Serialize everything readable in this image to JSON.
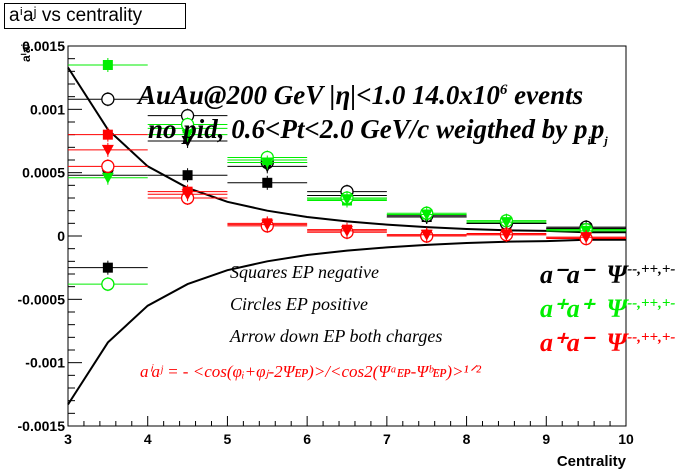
{
  "title": "aⁱaʲ vs centrality",
  "chart_data": {
    "type": "scatter",
    "xlabel": "Centrality",
    "ylabel": "aⁱaʲ",
    "xlim": [
      3,
      10
    ],
    "ylim": [
      -0.0015,
      0.0015
    ],
    "x_ticks": [
      "3",
      "4",
      "5",
      "6",
      "7",
      "8",
      "9",
      "10"
    ],
    "y_ticks": [
      "-0.0015",
      "-0.001",
      "-0.0005",
      "0",
      "0.0005",
      "0.001",
      "0.0015"
    ],
    "series": [
      {
        "color": "#000000",
        "marker": "square",
        "x": [
          3.5,
          4.5,
          5.5,
          6.5,
          7.5,
          8.5,
          9.5
        ],
        "y": [
          -0.00025,
          0.00048,
          0.00042,
          0.00032,
          0.00015,
          0.0001,
          6e-05
        ]
      },
      {
        "color": "#000000",
        "marker": "open-circle",
        "x": [
          3.5,
          4.5,
          5.5,
          6.5,
          7.5,
          8.5,
          9.5
        ],
        "y": [
          0.00108,
          0.00095,
          0.00058,
          0.00035,
          0.00016,
          0.0001,
          7e-05
        ]
      },
      {
        "color": "#000000",
        "marker": "triangle-down",
        "x": [
          3.5,
          4.5,
          5.5,
          6.5,
          7.5,
          8.5,
          9.5
        ],
        "y": [
          0.00048,
          0.00075,
          0.00055,
          0.0003,
          0.00015,
          0.0001,
          6e-05
        ]
      },
      {
        "color": "#00ee00",
        "marker": "square",
        "x": [
          3.5,
          4.5,
          5.5,
          6.5,
          7.5,
          8.5,
          9.5
        ],
        "y": [
          0.00135,
          0.00085,
          0.0006,
          0.00028,
          0.00017,
          0.00012,
          5e-05
        ]
      },
      {
        "color": "#00ee00",
        "marker": "open-circle",
        "x": [
          3.5,
          4.5,
          5.5,
          6.5,
          7.5,
          8.5,
          9.5
        ],
        "y": [
          -0.00038,
          0.00088,
          0.00062,
          0.0003,
          0.00018,
          0.00012,
          5e-05
        ]
      },
      {
        "color": "#00ee00",
        "marker": "triangle-down",
        "x": [
          3.5,
          4.5,
          5.5,
          6.5,
          7.5,
          8.5,
          9.5
        ],
        "y": [
          0.00046,
          0.0008,
          0.00058,
          0.00029,
          0.00017,
          0.00011,
          4e-05
        ]
      },
      {
        "color": "#ff0000",
        "marker": "square",
        "x": [
          3.5,
          4.5,
          5.5,
          6.5,
          7.5,
          8.5,
          9.5
        ],
        "y": [
          0.0008,
          0.00035,
          0.0001,
          5e-05,
          1e-05,
          2e-05,
          -1e-05
        ]
      },
      {
        "color": "#ff0000",
        "marker": "open-circle",
        "x": [
          3.5,
          4.5,
          5.5,
          6.5,
          7.5,
          8.5,
          9.5
        ],
        "y": [
          0.00055,
          0.0003,
          8e-05,
          3e-05,
          0.0,
          1e-05,
          -2e-05
        ]
      },
      {
        "color": "#ff0000",
        "marker": "triangle-down",
        "x": [
          3.5,
          4.5,
          5.5,
          6.5,
          7.5,
          8.5,
          9.5
        ],
        "y": [
          0.00068,
          0.00033,
          9e-05,
          4e-05,
          1e-05,
          1e-05,
          -1e-05
        ]
      }
    ],
    "curves": [
      {
        "color": "#000000",
        "x": [
          3.0,
          3.5,
          4.0,
          4.5,
          5.0,
          5.5,
          6.0,
          6.5,
          7.0,
          7.5,
          8.0,
          8.5,
          9.0,
          9.5,
          10.0
        ],
        "y": [
          0.00133,
          0.00084,
          0.00055,
          0.00038,
          0.00027,
          0.0002,
          0.00015,
          0.000115,
          9e-05,
          7e-05,
          5.5e-05,
          4.5e-05,
          4e-05,
          3e-05,
          3e-05
        ]
      },
      {
        "color": "#000000",
        "x": [
          3.0,
          3.5,
          4.0,
          4.5,
          5.0,
          5.5,
          6.0,
          6.5,
          7.0,
          7.5,
          8.0,
          8.5,
          9.0,
          9.5,
          10.0
        ],
        "y": [
          -0.00133,
          -0.00084,
          -0.00055,
          -0.00038,
          -0.00027,
          -0.0002,
          -0.00015,
          -0.000115,
          -9e-05,
          -7e-05,
          -5.5e-05,
          -4.5e-05,
          -4e-05,
          -3e-05,
          -3e-05
        ]
      }
    ]
  },
  "annotations": {
    "line1_main": "AuAu@200 GeV |η|<1.0 14.0x10",
    "line1_sup": "6",
    "line1_tail": " events",
    "line2_main": "no pid, 0.6<Pt<2.0 GeV/c weigthed by p",
    "line2_sub1": "i",
    "line2_p": "p",
    "line2_sub2": "j",
    "legend1": "Squares EP negative",
    "legend2": "Circles EP positive",
    "legend3": "Arrow down EP both charges",
    "formula": "aⁱaʲ = - <cos(φᵢ+φⱼ-2Ψᴇᴘ)>/<cos2(Ψᵃᴇᴘ-Ψᵇᴇᴘ)>¹ᐟ²"
  },
  "labels": {
    "mm_base": "a⁻a⁻",
    "mm_psi": "Ψ",
    "mm_sup": "--,++,+-",
    "pp_base": "a⁺a⁺",
    "pp_psi": "Ψ",
    "pp_sup": "--,++,+-",
    "pm_base": "a⁺a⁻",
    "pm_psi": "Ψ",
    "pm_sup": "--,++,+-"
  },
  "colors": {
    "black": "#000000",
    "green": "#00ee00",
    "red": "#ff0000"
  }
}
